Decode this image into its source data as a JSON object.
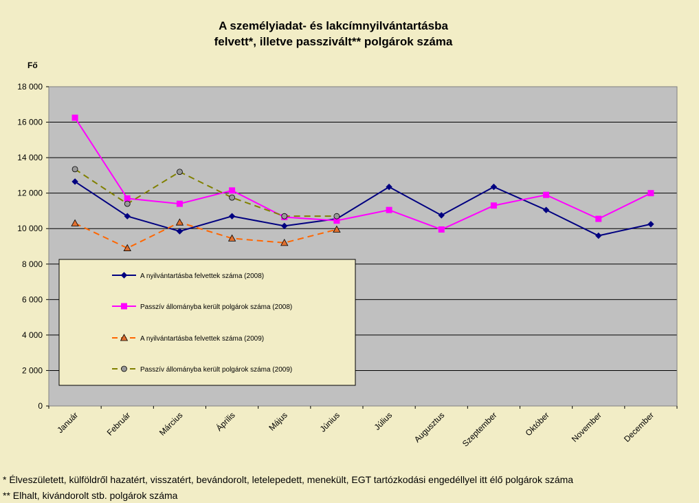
{
  "chart_data": {
    "type": "line",
    "title": [
      "A személyiadat- és lakcímnyilvántartásba",
      "felvett*, illetve passzivált** polgárok száma"
    ],
    "ylabel": "Fő",
    "ylim": [
      0,
      18000
    ],
    "yticks": [
      0,
      2000,
      4000,
      6000,
      8000,
      10000,
      12000,
      14000,
      16000,
      18000
    ],
    "ytick_labels": [
      "0",
      "2 000",
      "4 000",
      "6 000",
      "8 000",
      "10 000",
      "12 000",
      "14 000",
      "16 000",
      "18 000"
    ],
    "grid": true,
    "legend_position": "lower-left",
    "categories": [
      "Január",
      "Február",
      "Március",
      "Április",
      "Május",
      "Június",
      "Július",
      "Augusztus",
      "Szeptember",
      "Október",
      "November",
      "December"
    ],
    "series": [
      {
        "name": "A nyilvántartásba felvettek száma (2008)",
        "color": "#000080",
        "marker": "diamond",
        "dash": "solid",
        "values": [
          12650,
          10700,
          9850,
          10700,
          10150,
          10550,
          12350,
          10750,
          12350,
          11050,
          9600,
          10250
        ]
      },
      {
        "name": "Passzív állományba került polgárok száma (2008)",
        "color": "#ff00ff",
        "marker": "square",
        "dash": "solid",
        "values": [
          16250,
          11700,
          11400,
          12150,
          10650,
          10450,
          11050,
          9950,
          11300,
          11900,
          10550,
          12000
        ]
      },
      {
        "name": "A nyilvántartásba felvettek száma (2009)",
        "color": "#ff6600",
        "marker": "triangle",
        "dash": "dashed",
        "values": [
          10300,
          8900,
          10350,
          9450,
          9200,
          9950,
          null,
          null,
          null,
          null,
          null,
          null
        ]
      },
      {
        "name": "Passzív állományba került polgárok száma (2009)",
        "color": "#808000",
        "marker": "circle",
        "dash": "dashed",
        "values": [
          13350,
          11400,
          13200,
          11750,
          10700,
          10700,
          null,
          null,
          null,
          null,
          null,
          null
        ]
      }
    ]
  },
  "footnotes": {
    "note1": "* Élveszületett, külföldről hazatért, visszatért, bevándorolt, letelepedett, menekült, EGT tartózkodási engedéllyel itt élő  polgárok száma",
    "note2": "** Elhalt, kivándorolt stb. polgárok száma"
  },
  "colors": {
    "background": "#f2edc6",
    "plot_area": "#c0c0c0",
    "legend_bg": "#f2edc6"
  }
}
